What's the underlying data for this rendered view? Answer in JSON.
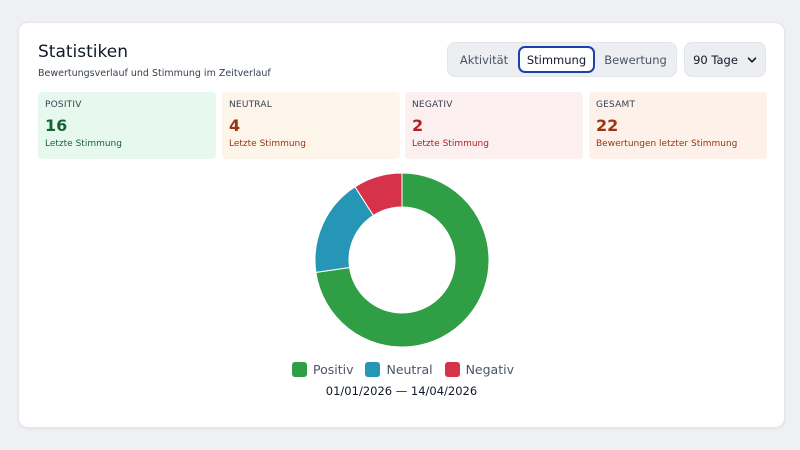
{
  "header": {
    "title": "Statistiken",
    "subtitle": "Bewertungsverlauf und Stimmung im Zeitverlauf"
  },
  "tabs": [
    {
      "label": "Aktivität",
      "active": false
    },
    {
      "label": "Stimmung",
      "active": true
    },
    {
      "label": "Bewertung",
      "active": false
    }
  ],
  "period": {
    "selected": "90 Tage",
    "icon": "chevron-down-icon"
  },
  "stats": [
    {
      "label": "POSITIV",
      "value": "16",
      "sub": "Letzte Stimmung",
      "bg": "#e7f9ef",
      "color": "#166534"
    },
    {
      "label": "NEUTRAL",
      "value": "4",
      "sub": "Letzte Stimmung",
      "bg": "#fdf4ea",
      "color": "#9a3412"
    },
    {
      "label": "NEGATIV",
      "value": "2",
      "sub": "Letzte Stimmung",
      "bg": "#fcefef",
      "color": "#b91c1c"
    },
    {
      "label": "GESAMT",
      "value": "22",
      "sub": "Bewertungen letzter Stimmung",
      "bg": "#fdf1ea",
      "color": "#9a3412"
    }
  ],
  "chart_data": {
    "type": "pie",
    "donut": true,
    "categories": [
      "Positiv",
      "Neutral",
      "Negativ"
    ],
    "values": [
      16,
      4,
      2
    ],
    "colors": [
      "#2f9e44",
      "#2596b5",
      "#d6334a"
    ],
    "legend_position": "bottom",
    "title": "",
    "date_range": "01/01/2026 — 14/04/2026"
  }
}
